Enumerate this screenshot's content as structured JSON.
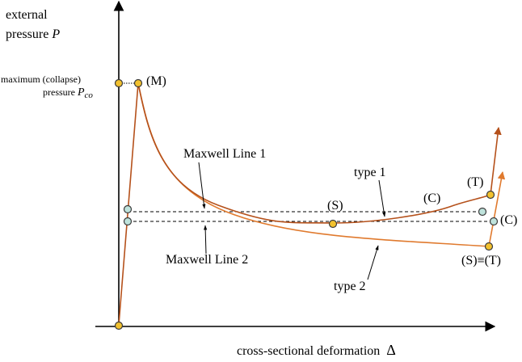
{
  "axes": {
    "y_label_line1": "external",
    "y_label_line2": "pressure",
    "y_symbol": "P",
    "x_label": "cross-sectional deformation",
    "x_symbol": "Δ"
  },
  "collapse_label": {
    "line1": "maximum (collapse)",
    "line2": "pressure",
    "symbol": "P",
    "subscript": "co"
  },
  "point_labels": {
    "M": "(M)",
    "S": "(S)",
    "C1": "(C)",
    "T1": "(T)",
    "C2": "(C)",
    "ST": "(S)≡(T)"
  },
  "annotations": {
    "maxwell1": "Maxwell Line 1",
    "maxwell2": "Maxwell Line 2",
    "type1": "type 1",
    "type2": "type 2"
  },
  "colors": {
    "axis": "#000000",
    "curve_type1": "#b5511b",
    "curve_type2": "#e07a2e",
    "point_fill_yellow": "#f2c12e",
    "point_fill_cyan": "#bfe3dc",
    "point_stroke": "#3a3a3a",
    "dashed": "#000000"
  }
}
